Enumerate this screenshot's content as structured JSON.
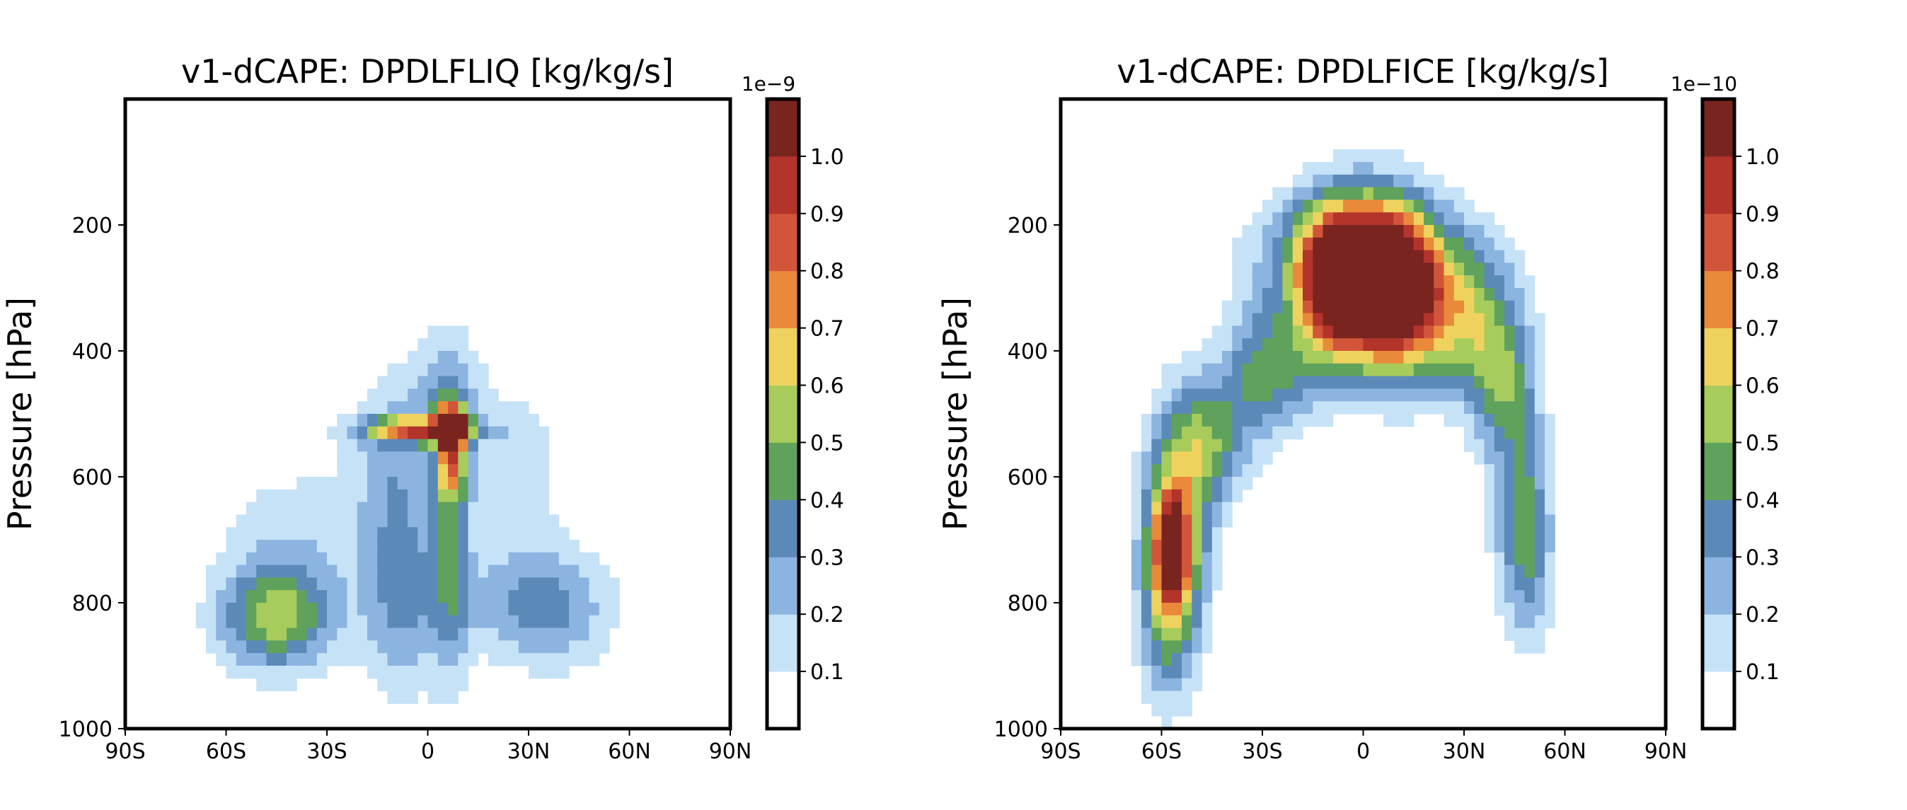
{
  "colorbar_colors": [
    "#ffffff",
    "#c6e2f6",
    "#8cb4e0",
    "#5b8ab8",
    "#5fa25c",
    "#a7cc5c",
    "#efd25e",
    "#e88a3a",
    "#d2553a",
    "#b3342a",
    "#7a2420"
  ],
  "chart_data": [
    {
      "type": "heatmap",
      "title": "v1-dCAPE: DPDLFLIQ [kg/kg/s]",
      "xlabel": "",
      "ylabel": "Pressure [hPa]",
      "x_ticks": [
        "90S",
        "60S",
        "30S",
        "0",
        "30N",
        "60N",
        "90N"
      ],
      "x_tick_values": [
        -90,
        -60,
        -30,
        0,
        30,
        60,
        90
      ],
      "xlim": [
        -90,
        90
      ],
      "y_ticks": [
        "200",
        "400",
        "600",
        "800",
        "1000"
      ],
      "y_tick_values": [
        200,
        400,
        600,
        800,
        1000
      ],
      "ylim": [
        1000,
        0
      ],
      "colorbar": {
        "offset_label": "1e−9",
        "levels": [
          0.0,
          0.1,
          0.2,
          0.3,
          0.4,
          0.5,
          0.6,
          0.7,
          0.8,
          0.9,
          1.0,
          1.1
        ],
        "tick_labels": [
          "0.1",
          "0.2",
          "0.3",
          "0.4",
          "0.5",
          "0.6",
          "0.7",
          "0.8",
          "0.9",
          "1.0"
        ],
        "tick_values": [
          0.1,
          0.2,
          0.3,
          0.4,
          0.5,
          0.6,
          0.7,
          0.8,
          0.9,
          1.0
        ]
      },
      "features": [
        {
          "lat": -45,
          "p": 825,
          "sx": 12,
          "sp": 60,
          "amp": 0.52
        },
        {
          "lat": -40,
          "p": 700,
          "sx": 16,
          "sp": 90,
          "amp": 0.16
        },
        {
          "lat": -8,
          "p": 780,
          "sx": 8,
          "sp": 120,
          "amp": 0.32
        },
        {
          "lat": 7,
          "p": 690,
          "sx": 4,
          "sp": 170,
          "amp": 0.32
        },
        {
          "lat": -10,
          "p": 560,
          "sx": 10,
          "sp": 90,
          "amp": 0.2
        },
        {
          "lat": 25,
          "p": 580,
          "sx": 11,
          "sp": 90,
          "amp": 0.18
        },
        {
          "lat": 7,
          "p": 520,
          "sx": 3,
          "sp": 20,
          "amp": 1.05
        },
        {
          "lat": -3,
          "p": 525,
          "sx": 11,
          "sp": 14,
          "amp": 0.72
        },
        {
          "lat": 7,
          "p": 565,
          "sx": 3,
          "sp": 45,
          "amp": 0.55
        },
        {
          "lat": 5,
          "p": 450,
          "sx": 8,
          "sp": 60,
          "amp": 0.18
        },
        {
          "lat": 38,
          "p": 810,
          "sx": 13,
          "sp": 70,
          "amp": 0.27
        },
        {
          "lat": 20,
          "p": 800,
          "sx": 15,
          "sp": 60,
          "amp": 0.15
        }
      ]
    },
    {
      "type": "heatmap",
      "title": "v1-dCAPE: DPDLFICE [kg/kg/s]",
      "xlabel": "",
      "ylabel": "Pressure [hPa]",
      "x_ticks": [
        "90S",
        "60S",
        "30S",
        "0",
        "30N",
        "60N",
        "90N"
      ],
      "x_tick_values": [
        -90,
        -60,
        -30,
        0,
        30,
        60,
        90
      ],
      "xlim": [
        -90,
        90
      ],
      "y_ticks": [
        "200",
        "400",
        "600",
        "800",
        "1000"
      ],
      "y_tick_values": [
        200,
        400,
        600,
        800,
        1000
      ],
      "ylim": [
        1000,
        0
      ],
      "colorbar": {
        "offset_label": "1e−10",
        "levels": [
          0.0,
          0.1,
          0.2,
          0.3,
          0.4,
          0.5,
          0.6,
          0.7,
          0.8,
          0.9,
          1.0,
          1.1
        ],
        "tick_labels": [
          "0.1",
          "0.2",
          "0.3",
          "0.4",
          "0.5",
          "0.6",
          "0.7",
          "0.8",
          "0.9",
          "1.0"
        ],
        "tick_values": [
          0.1,
          0.2,
          0.3,
          0.4,
          0.5,
          0.6,
          0.7,
          0.8,
          0.9,
          1.0
        ]
      },
      "features": [
        {
          "lat": -58,
          "p": 790,
          "sx": 6,
          "sp": 110,
          "amp": 0.5
        },
        {
          "lat": -55,
          "p": 660,
          "sx": 7,
          "sp": 120,
          "amp": 0.5
        },
        {
          "lat": -57,
          "p": 710,
          "sx": 3,
          "sp": 55,
          "amp": 0.6
        },
        {
          "lat": -45,
          "p": 540,
          "sx": 8,
          "sp": 70,
          "amp": 0.4
        },
        {
          "lat": -28,
          "p": 430,
          "sx": 9,
          "sp": 70,
          "amp": 0.45
        },
        {
          "lat": -8,
          "p": 300,
          "sx": 8,
          "sp": 90,
          "amp": 1.0
        },
        {
          "lat": 8,
          "p": 300,
          "sx": 8,
          "sp": 90,
          "amp": 1.0
        },
        {
          "lat": 0,
          "p": 255,
          "sx": 20,
          "sp": 70,
          "amp": 0.6
        },
        {
          "lat": 25,
          "p": 350,
          "sx": 12,
          "sp": 80,
          "amp": 0.55
        },
        {
          "lat": 40,
          "p": 440,
          "sx": 7,
          "sp": 80,
          "amp": 0.35
        },
        {
          "lat": 46,
          "p": 620,
          "sx": 6,
          "sp": 140,
          "amp": 0.3
        },
        {
          "lat": 50,
          "p": 720,
          "sx": 5,
          "sp": 100,
          "amp": 0.25
        }
      ]
    }
  ]
}
